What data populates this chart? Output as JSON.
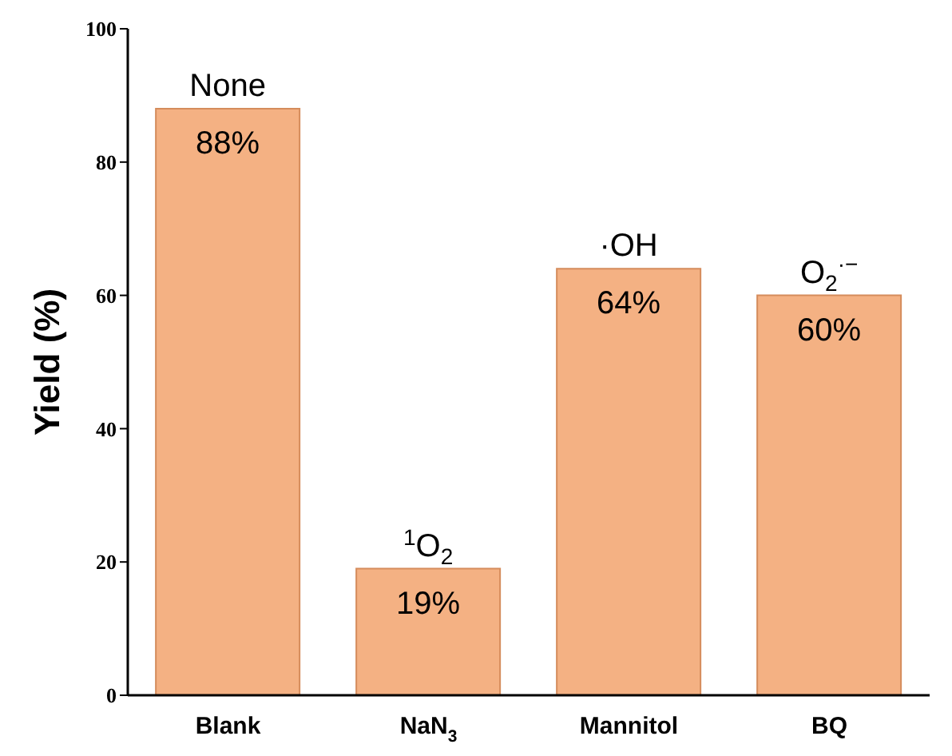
{
  "chart_data": {
    "type": "bar",
    "ylabel": "Yield (%)",
    "categories": [
      "Blank",
      "NaN$_{3}$",
      "Mannitol",
      "BQ"
    ],
    "values": [
      88,
      19,
      64,
      60
    ],
    "value_labels": [
      "88%",
      "19%",
      "64%",
      "60%"
    ],
    "color": "#f4b183",
    "ylim": [
      0,
      100
    ],
    "yticks": [
      0,
      20,
      40,
      60,
      80,
      100
    ],
    "grid": false,
    "legend": false,
    "annotations": [
      {
        "text": "None",
        "x": "Blank",
        "y": 88
      },
      {
        "text": "$^{1}$O$_{2}$",
        "x": "NaN$_{3}$",
        "y": 19
      },
      {
        "text": "·OH",
        "x": "Mannitol",
        "y": 64
      },
      {
        "text": "O$_{2}$$^{·−}$",
        "x": "BQ",
        "y": 60
      }
    ]
  }
}
